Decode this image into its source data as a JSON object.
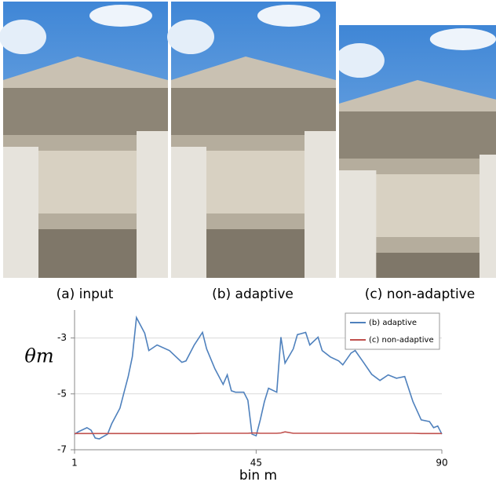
{
  "figure": {
    "panels": [
      {
        "caption": "(a) input"
      },
      {
        "caption": "(b) adaptive"
      },
      {
        "caption": "(c) non-adaptive"
      }
    ]
  },
  "chart_data": {
    "type": "line",
    "y_label": "θm",
    "x_label": "bin m",
    "x": [
      1,
      2,
      4,
      5,
      6,
      7,
      9,
      10,
      12,
      13,
      14,
      15,
      16,
      18,
      19,
      21,
      24,
      27,
      28,
      30,
      32,
      33,
      35,
      37,
      38,
      39,
      40,
      42,
      43,
      44,
      45,
      46,
      47,
      48,
      50,
      51,
      52,
      54,
      55,
      57,
      58,
      60,
      61,
      63,
      65,
      66,
      68,
      69,
      71,
      73,
      75,
      77,
      79,
      81,
      83,
      85,
      87,
      88,
      89,
      90
    ],
    "series": [
      {
        "name": "(b) adaptive",
        "color": "#4f81bd",
        "values": [
          -6.44,
          -6.35,
          -6.21,
          -6.3,
          -6.58,
          -6.61,
          -6.44,
          -6.07,
          -5.51,
          -4.94,
          -4.38,
          -3.67,
          -2.27,
          -2.83,
          -3.45,
          -3.25,
          -3.45,
          -3.87,
          -3.82,
          -3.25,
          -2.8,
          -3.39,
          -4.1,
          -4.66,
          -4.32,
          -4.89,
          -4.94,
          -4.94,
          -5.23,
          -6.44,
          -6.5,
          -5.93,
          -5.28,
          -4.8,
          -4.94,
          -2.97,
          -3.9,
          -3.39,
          -2.88,
          -2.8,
          -3.25,
          -2.97,
          -3.45,
          -3.68,
          -3.82,
          -3.96,
          -3.54,
          -3.45,
          -3.87,
          -4.3,
          -4.52,
          -4.32,
          -4.44,
          -4.38,
          -5.28,
          -5.93,
          -5.99,
          -6.21,
          -6.15,
          -6.44
        ]
      },
      {
        "name": "(c) non-adaptive",
        "color": "#c0504d",
        "values": [
          -6.42,
          -6.42,
          -6.42,
          -6.42,
          -6.42,
          -6.42,
          -6.42,
          -6.42,
          -6.42,
          -6.42,
          -6.42,
          -6.42,
          -6.42,
          -6.42,
          -6.42,
          -6.42,
          -6.42,
          -6.42,
          -6.42,
          -6.42,
          -6.41,
          -6.41,
          -6.41,
          -6.41,
          -6.41,
          -6.41,
          -6.41,
          -6.41,
          -6.41,
          -6.4,
          -6.4,
          -6.41,
          -6.41,
          -6.41,
          -6.41,
          -6.4,
          -6.36,
          -6.41,
          -6.41,
          -6.41,
          -6.41,
          -6.41,
          -6.41,
          -6.41,
          -6.41,
          -6.41,
          -6.41,
          -6.41,
          -6.41,
          -6.41,
          -6.41,
          -6.41,
          -6.41,
          -6.41,
          -6.41,
          -6.42,
          -6.42,
          -6.42,
          -6.42,
          -6.42
        ]
      }
    ],
    "xlim": [
      1,
      90
    ],
    "xticks": [
      1,
      45,
      90
    ],
    "ylim": [
      -7,
      -2
    ],
    "yticks": [
      -3,
      -5,
      -7
    ],
    "grid": true,
    "legend": "top-right"
  }
}
